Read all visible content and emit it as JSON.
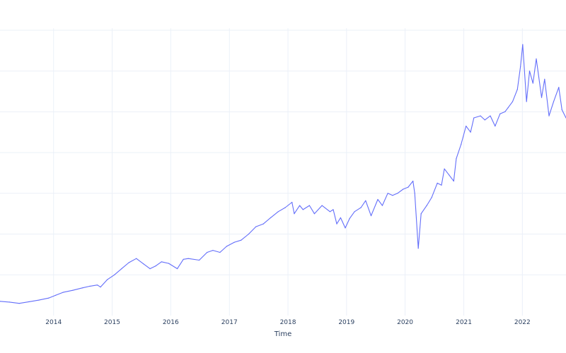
{
  "colors": {
    "series": "#636efa",
    "grid": "#ebf0f8",
    "text": "#2a3f5f",
    "background": "#ffffff"
  },
  "chart_data": {
    "type": "line",
    "xlabel": "Time",
    "ylabel": "",
    "x_ticks": [
      "2014",
      "2015",
      "2016",
      "2017",
      "2018",
      "2019",
      "2020",
      "2021",
      "2022"
    ],
    "xlim": [
      "2013-02-01",
      "2022-09-30"
    ],
    "ylim": [
      0,
      7.05
    ],
    "y_grid": [
      1,
      2,
      3,
      4,
      5,
      6,
      7
    ],
    "y_tick_labels_visible": false,
    "grid": true,
    "legend": "none",
    "series": [
      {
        "x": [
          "2013-02-01",
          "2013-04-01",
          "2013-06-01",
          "2013-08-01",
          "2013-10-01",
          "2013-12-01",
          "2014-01-15",
          "2014-03-01",
          "2014-05-01",
          "2014-07-01",
          "2014-08-15",
          "2014-10-01",
          "2014-10-20",
          "2014-12-01",
          "2015-01-15",
          "2015-03-01",
          "2015-04-15",
          "2015-06-01",
          "2015-07-15",
          "2015-08-25",
          "2015-09-30",
          "2015-11-05",
          "2015-12-20",
          "2016-02-11",
          "2016-03-20",
          "2016-04-20",
          "2016-06-27",
          "2016-08-15",
          "2016-09-20",
          "2016-11-03",
          "2016-12-15",
          "2017-02-01",
          "2017-03-15",
          "2017-05-01",
          "2017-06-15",
          "2017-08-01",
          "2017-09-15",
          "2017-11-01",
          "2017-12-15",
          "2018-01-26",
          "2018-02-09",
          "2018-03-15",
          "2018-04-05",
          "2018-05-15",
          "2018-06-15",
          "2018-08-01",
          "2018-09-20",
          "2018-10-10",
          "2018-11-01",
          "2018-11-25",
          "2018-12-24",
          "2019-01-20",
          "2019-02-20",
          "2019-04-01",
          "2019-04-30",
          "2019-06-03",
          "2019-07-15",
          "2019-08-12",
          "2019-09-15",
          "2019-10-15",
          "2019-11-15",
          "2019-12-20",
          "2020-01-20",
          "2020-02-19",
          "2020-03-01",
          "2020-03-23",
          "2020-04-10",
          "2020-05-15",
          "2020-06-15",
          "2020-07-20",
          "2020-08-15",
          "2020-09-02",
          "2020-10-01",
          "2020-10-30",
          "2020-11-15",
          "2020-12-15",
          "2021-01-15",
          "2021-02-12",
          "2021-03-05",
          "2021-04-15",
          "2021-05-12",
          "2021-06-15",
          "2021-07-15",
          "2021-08-15",
          "2021-09-15",
          "2021-10-04",
          "2021-11-01",
          "2021-12-01",
          "2021-12-20",
          "2022-01-03",
          "2022-01-27",
          "2022-02-15",
          "2022-03-08",
          "2022-03-29",
          "2022-05-01",
          "2022-05-20",
          "2022-06-16",
          "2022-07-15",
          "2022-08-16",
          "2022-09-05",
          "2022-09-30"
        ],
        "y": [
          0.35,
          0.33,
          0.3,
          0.34,
          0.38,
          0.43,
          0.5,
          0.57,
          0.62,
          0.68,
          0.72,
          0.75,
          0.7,
          0.88,
          1.0,
          1.15,
          1.3,
          1.4,
          1.27,
          1.15,
          1.22,
          1.32,
          1.28,
          1.15,
          1.38,
          1.4,
          1.36,
          1.55,
          1.6,
          1.55,
          1.7,
          1.8,
          1.85,
          2.0,
          2.18,
          2.25,
          2.4,
          2.55,
          2.65,
          2.78,
          2.5,
          2.7,
          2.6,
          2.7,
          2.5,
          2.7,
          2.55,
          2.6,
          2.25,
          2.4,
          2.15,
          2.38,
          2.55,
          2.65,
          2.82,
          2.45,
          2.85,
          2.7,
          3.0,
          2.95,
          3.0,
          3.1,
          3.15,
          3.3,
          3.0,
          1.65,
          2.5,
          2.7,
          2.9,
          3.25,
          3.2,
          3.6,
          3.45,
          3.3,
          3.85,
          4.2,
          4.65,
          4.5,
          4.85,
          4.9,
          4.8,
          4.9,
          4.65,
          4.95,
          5.0,
          5.1,
          5.25,
          5.55,
          6.1,
          6.65,
          5.25,
          6.0,
          5.7,
          6.3,
          5.35,
          5.8,
          4.9,
          5.25,
          5.6,
          5.05,
          4.85
        ]
      }
    ]
  }
}
